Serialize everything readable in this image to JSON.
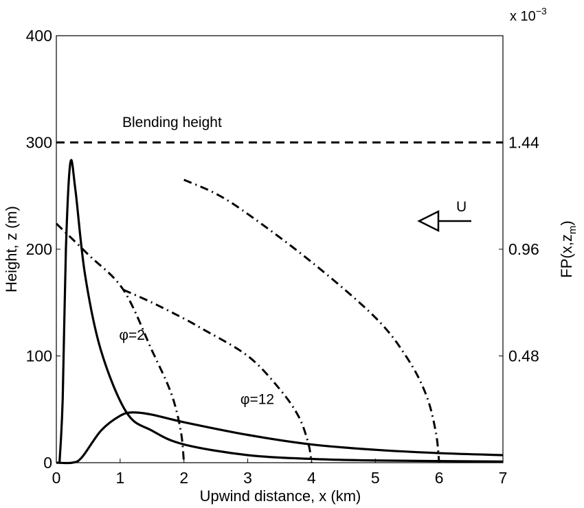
{
  "chart_data": {
    "type": "line",
    "xlabel": "Upwind distance, x (km)",
    "ylabel": "Height, z (m)",
    "y2label": "FP(x,z",
    "y2label_sub": "m",
    "y2label_close": ")",
    "y2_multiplier": "x 10",
    "y2_multiplier_exp": "−3",
    "xlim": [
      0,
      7
    ],
    "ylim": [
      0,
      400
    ],
    "y2lim": [
      0,
      1.92
    ],
    "xticks": [
      "0",
      "1",
      "2",
      "3",
      "4",
      "5",
      "6",
      "7"
    ],
    "yticks": [
      "0",
      "100",
      "200",
      "300",
      "400"
    ],
    "y2ticks": [
      {
        "value": 0.48,
        "label": "0.48"
      },
      {
        "value": 0.96,
        "label": "0.96"
      },
      {
        "value": 1.44,
        "label": "1.44"
      }
    ],
    "grid": false,
    "reference_line": {
      "y": 300,
      "label": "Blending height",
      "style": "dashed"
    },
    "wind_arrow": {
      "label": "U",
      "direction": "left"
    },
    "footprint_series": [
      {
        "name": "φ=2",
        "axis": "right",
        "x": [
          0.05,
          0.1,
          0.15,
          0.22,
          0.3,
          0.45,
          0.7,
          1.1,
          1.5,
          2,
          3,
          4,
          5,
          7
        ],
        "y": [
          0,
          0.288,
          0.96,
          1.349,
          1.224,
          0.845,
          0.504,
          0.226,
          0.144,
          0.082,
          0.034,
          0.017,
          0.01,
          0.005
        ]
      },
      {
        "name": "φ=12",
        "axis": "right",
        "x": [
          0,
          0.25,
          0.4,
          0.7,
          1,
          1.2,
          1.5,
          2,
          3,
          4,
          5,
          6,
          7
        ],
        "y": [
          0,
          0,
          0.024,
          0.144,
          0.211,
          0.226,
          0.216,
          0.182,
          0.125,
          0.082,
          0.058,
          0.043,
          0.034
        ]
      }
    ],
    "boundary_series": [
      {
        "axis": "left",
        "x": [
          0,
          0.5,
          1.05,
          1.5,
          1.8,
          1.95,
          2
        ],
        "y": [
          224,
          195,
          162,
          105,
          65,
          30,
          0
        ]
      },
      {
        "axis": "left",
        "x": [
          1.05,
          1.5,
          2,
          2.27,
          3,
          3.5,
          3.8,
          3.95,
          4
        ],
        "y": [
          162,
          150,
          135,
          126,
          100,
          69,
          43,
          18,
          0
        ]
      },
      {
        "axis": "left",
        "x": [
          2,
          2.5,
          3,
          4,
          5,
          5.5,
          5.8,
          5.95,
          6
        ],
        "y": [
          265,
          252,
          233,
          188,
          136,
          98,
          63,
          28,
          0
        ]
      }
    ],
    "series_labels": [
      {
        "text": "φ=2",
        "x": 1.2,
        "y": 115
      },
      {
        "text": "φ=12",
        "x": 3.1,
        "y": 55
      }
    ]
  }
}
